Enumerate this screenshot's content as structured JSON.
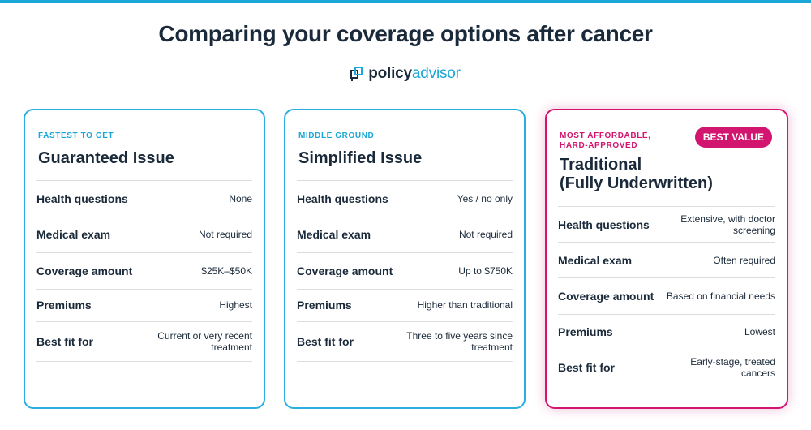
{
  "title": "Comparing your coverage options after cancer",
  "logo": {
    "part1": "policy",
    "part2": "advisor"
  },
  "colors": {
    "accent_blue": "#1aa6d6",
    "accent_pink": "#d2156f",
    "text_dark": "#1b2a3a"
  },
  "cards": [
    {
      "eyebrow": "FASTEST TO GET",
      "title": "Guaranteed Issue",
      "rows": [
        {
          "label": "Health questions",
          "value": "None"
        },
        {
          "label": "Medical exam",
          "value": "Not required"
        },
        {
          "label": "Coverage amount",
          "value": "$25K–$50K"
        },
        {
          "label": "Premiums",
          "value": "Highest"
        },
        {
          "label": "Best fit for",
          "value": "Current or very recent treatment"
        }
      ]
    },
    {
      "eyebrow": "MIDDLE GROUND",
      "title": "Simplified Issue",
      "rows": [
        {
          "label": "Health questions",
          "value": "Yes / no only"
        },
        {
          "label": "Medical exam",
          "value": "Not required"
        },
        {
          "label": "Coverage amount",
          "value": "Up to $750K"
        },
        {
          "label": "Premiums",
          "value": "Higher than traditional"
        },
        {
          "label": "Best fit for",
          "value": "Three to five years since treatment"
        }
      ]
    },
    {
      "eyebrow": "MOST AFFORDABLE, HARD-APPROVED",
      "badge": "BEST VALUE",
      "title_line1": "Traditional",
      "title_line2": "(Fully Underwritten)",
      "rows": [
        {
          "label": "Health questions",
          "value": "Extensive, with doctor screening"
        },
        {
          "label": "Medical exam",
          "value": "Often required"
        },
        {
          "label": "Coverage amount",
          "value": "Based on financial needs"
        },
        {
          "label": "Premiums",
          "value": "Lowest"
        },
        {
          "label": "Best fit for",
          "value": "Early-stage, treated cancers"
        }
      ]
    }
  ]
}
